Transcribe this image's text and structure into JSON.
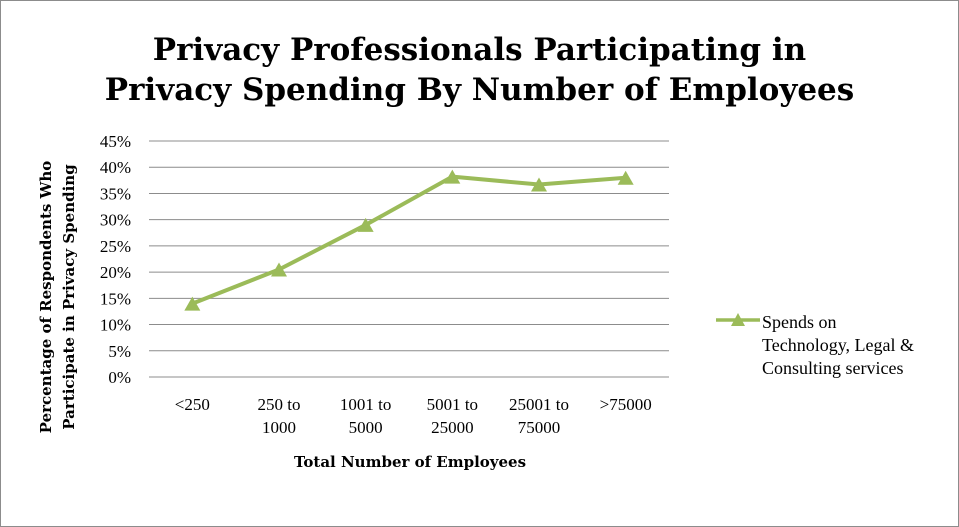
{
  "chart_data": {
    "type": "line",
    "title_lines": [
      "Privacy Professionals Participating in",
      "Privacy Spending By Number of Employees"
    ],
    "categories": [
      [
        "<250"
      ],
      [
        "250 to",
        "1000"
      ],
      [
        "1001 to",
        "5000"
      ],
      [
        "5001 to",
        "25000"
      ],
      [
        "25001 to",
        "75000"
      ],
      [
        ">75000"
      ]
    ],
    "series": [
      {
        "name": "Spends on Technology, Legal & Consulting services",
        "values": [
          14,
          20.5,
          29,
          38.2,
          36.7,
          38
        ],
        "color": "#9bbb59",
        "marker": "triangle"
      }
    ],
    "ylim": [
      0,
      45
    ],
    "y_ticks": [
      "0%",
      "5%",
      "10%",
      "15%",
      "20%",
      "25%",
      "30%",
      "35%",
      "40%",
      "45%"
    ],
    "y_tick_values": [
      0,
      5,
      10,
      15,
      20,
      25,
      30,
      35,
      40,
      45
    ],
    "xlabel": "Total Number of Employees",
    "ylabel_lines": [
      "Percentage of Respondents Who",
      "Participate in Privacy Spending"
    ],
    "grid": true,
    "legend_position": "right",
    "legend_lines": [
      "Spends on",
      "Technology, Legal &",
      "Consulting services"
    ]
  },
  "colors": {
    "gridline": "#8c8c8c",
    "frame": "#8c8c8c",
    "series": "#9bbb59"
  }
}
